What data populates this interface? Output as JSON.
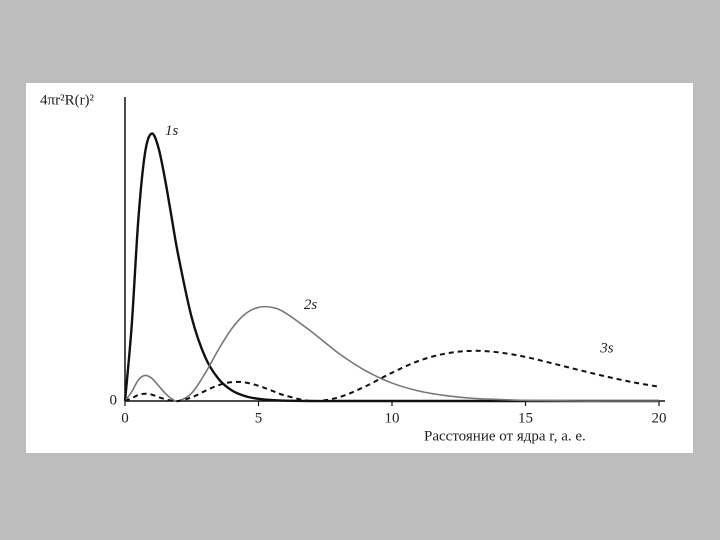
{
  "chart_data": {
    "type": "line",
    "y_label": "4πr²R(r)²",
    "x_label": "Расстояние от ядра r, а. е.",
    "x": [
      0,
      0.25,
      0.5,
      0.75,
      1,
      1.25,
      1.5,
      1.75,
      2,
      2.5,
      3,
      3.5,
      4,
      4.5,
      5,
      5.5,
      6,
      7,
      8,
      9,
      10,
      11,
      12,
      13,
      14,
      15,
      16,
      17,
      18,
      19,
      20
    ],
    "series": [
      {
        "name": "1s",
        "color": "#111111",
        "style": "solid",
        "values": [
          0,
          0.247,
          0.598,
          0.816,
          0.88,
          0.834,
          0.729,
          0.602,
          0.477,
          0.274,
          0.145,
          0.073,
          0.035,
          0.016,
          0.007,
          0.003,
          0.001,
          0,
          0,
          0,
          0,
          0,
          0,
          0,
          0,
          0,
          0,
          0,
          0,
          0,
          0
        ]
      },
      {
        "name": "2s",
        "color": "#777777",
        "style": "solid",
        "values": [
          0,
          0.03,
          0.069,
          0.084,
          0.075,
          0.051,
          0.026,
          0.007,
          0,
          0.026,
          0.091,
          0.169,
          0.238,
          0.286,
          0.308,
          0.308,
          0.29,
          0.227,
          0.157,
          0.1,
          0.059,
          0.033,
          0.018,
          0.009,
          0.005,
          0.002,
          0.001,
          0,
          0,
          0,
          0
        ]
      },
      {
        "name": "3s",
        "color": "#111111",
        "style": "dashed",
        "values": [
          0,
          0.009,
          0.02,
          0.024,
          0.021,
          0.013,
          0.006,
          0.001,
          0,
          0.012,
          0.033,
          0.052,
          0.062,
          0.061,
          0.05,
          0.034,
          0.018,
          0,
          0.012,
          0.048,
          0.093,
          0.132,
          0.156,
          0.165,
          0.16,
          0.145,
          0.124,
          0.102,
          0.081,
          0.062,
          0.047
        ]
      }
    ],
    "label_x": [
      1.5,
      6.7,
      17.8
    ],
    "xlim": [
      0,
      20
    ],
    "xticks": [
      0,
      5,
      10,
      15,
      20
    ],
    "ylim": [
      0,
      1
    ],
    "yticks": [
      0
    ]
  }
}
